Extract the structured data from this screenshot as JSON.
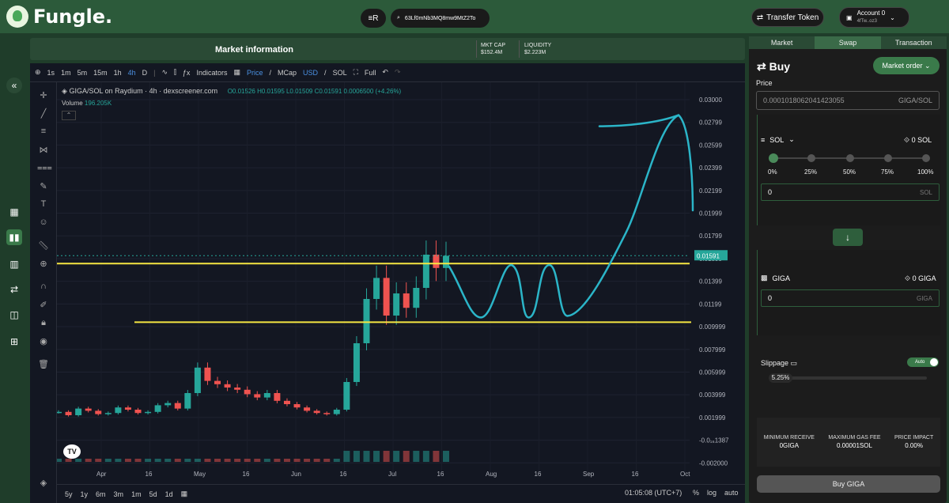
{
  "app": {
    "name": "Fungle."
  },
  "topbar": {
    "chain": "≡R",
    "search_value": "63Lf0mNb3MQ8mw9MtZ2To",
    "transfer_label": "Transfer Token",
    "account_name": "Account 0",
    "account_addr": "4fTw..oz3"
  },
  "market": {
    "title": "Market information",
    "mcap_label": "MKT CAP",
    "mcap_value": "$152.4M",
    "liquidity_label": "LIQUIDITY",
    "liquidity_value": "$2.223M"
  },
  "toolbar": {
    "timeframes": [
      "1s",
      "1m",
      "5m",
      "15m",
      "1h",
      "4h",
      "D"
    ],
    "active_tf": "4h",
    "indicators": "Indicators",
    "price": "Price",
    "mcap": "MCap",
    "usd": "USD",
    "sol": "SOL",
    "full": "Full"
  },
  "chart_header": {
    "title": "GIGA/SOL on Raydium · 4h · dexscreener.com",
    "ohlc": "O0.01526 H0.01595 L0.01509 C0.01591 0.0006500 (+4.26%)",
    "volume_label": "Volume",
    "volume_value": "196.205K"
  },
  "chart_data": {
    "type": "line",
    "current_price": "0.01591",
    "x_ticks": [
      "Apr",
      "16",
      "May",
      "16",
      "Jun",
      "16",
      "Jul",
      "16",
      "Aug",
      "16",
      "Sep",
      "16",
      "Oct"
    ],
    "y_ticks": [
      "0.03000",
      "0.02799",
      "0.02599",
      "0.02399",
      "0.02199",
      "0.01999",
      "0.01799",
      "0.01599",
      "0.01399",
      "0.01199",
      "0.009999",
      "0.007999",
      "0.005999",
      "0.003999",
      "0.001999",
      "-0.0₁₆1387",
      "-0.002000"
    ],
    "ylim": [
      -0.002,
      0.03
    ],
    "series": [
      {
        "values": [
          0.0018,
          0.0015,
          0.0021,
          0.0019,
          0.0016,
          0.0017,
          0.0022,
          0.002,
          0.0017,
          0.0018,
          0.0024,
          0.0026,
          0.0021,
          0.0035,
          0.0058,
          0.0046,
          0.0043,
          0.004,
          0.0038,
          0.0034,
          0.0031,
          0.0035,
          0.0028,
          0.0025,
          0.0022,
          0.0019,
          0.0017,
          0.0016,
          0.002,
          0.0045,
          0.008,
          0.012,
          0.0139,
          0.0105,
          0.0125,
          0.0112,
          0.013,
          0.016,
          0.0148,
          0.0159
        ]
      }
    ],
    "support_level": 0.0099,
    "resistance_level": 0.0152
  },
  "bottombar": {
    "ranges": [
      "5y",
      "1y",
      "6m",
      "3m",
      "1m",
      "5d",
      "1d"
    ],
    "time": "01:05:08 (UTC+7)",
    "pct": "%",
    "log": "log",
    "auto": "auto"
  },
  "panel": {
    "tabs": [
      "Market",
      "Swap",
      "Transaction"
    ],
    "active_tab": "Swap",
    "buy_label": "Buy",
    "order_type": "Market order",
    "price_label": "Price",
    "price_value": "0.0001018062041423055",
    "price_unit": "GIGA/SOL",
    "sell_token": "SOL",
    "sell_balance": "0 SOL",
    "percents": [
      "0%",
      "25%",
      "50%",
      "75%",
      "100%"
    ],
    "sell_value": "0",
    "sell_unit": "SOL",
    "buy_token": "GIGA",
    "buy_balance": "0 GIGA",
    "buy_value": "0",
    "buy_unit": "GIGA",
    "slippage_label": "Slippage",
    "slippage_mode": "Auto",
    "slippage_value": "5.25%",
    "min_receive_label": "MINIMUM RECEIVE",
    "min_receive_value": "0GIGA",
    "gas_label": "MAXIMUM GAS FEE",
    "gas_value": "0.00001SOL",
    "impact_label": "PRICE IMPACT",
    "impact_value": "0.00%",
    "buy_button": "Buy GIGA"
  },
  "colors": {
    "brand": "#2c5a3a",
    "accent": "#3a7a4a",
    "annotation_line": "#f5e642",
    "annotation_curve": "#2bb5c8",
    "up": "#26a69a",
    "down": "#ef5350"
  }
}
